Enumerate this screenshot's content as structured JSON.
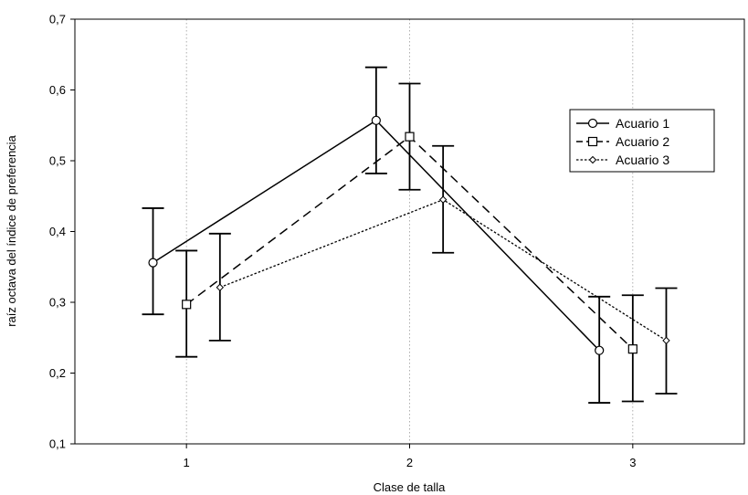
{
  "chart_data": {
    "type": "line",
    "xlabel": "Clase de talla",
    "ylabel": "raíz octava del índice de preferencia",
    "x_ticks": [
      "1",
      "2",
      "3"
    ],
    "y_ticks": [
      "0,1",
      "0,2",
      "0,3",
      "0,4",
      "0,5",
      "0,6",
      "0,7"
    ],
    "ylim": [
      0.1,
      0.7
    ],
    "xlim": [
      0.5,
      3.5
    ],
    "grid": "vertical dotted",
    "legend_position": "top-right",
    "error_bars": true,
    "series": [
      {
        "name": "Acuario 1",
        "marker": "circle",
        "line_style": "solid",
        "x": [
          0.85,
          1.85,
          2.85
        ],
        "y": [
          0.356,
          0.557,
          0.232
        ],
        "err_low": [
          0.283,
          0.482,
          0.158
        ],
        "err_high": [
          0.433,
          0.632,
          0.308
        ]
      },
      {
        "name": "Acuario 2",
        "marker": "square",
        "line_style": "dashed",
        "x": [
          1.0,
          2.0,
          3.0
        ],
        "y": [
          0.297,
          0.534,
          0.234
        ],
        "err_low": [
          0.223,
          0.459,
          0.16
        ],
        "err_high": [
          0.373,
          0.609,
          0.31
        ]
      },
      {
        "name": "Acuario 3",
        "marker": "diamond",
        "line_style": "dotted",
        "x": [
          1.15,
          2.15,
          3.15
        ],
        "y": [
          0.321,
          0.445,
          0.246
        ],
        "err_low": [
          0.246,
          0.37,
          0.171
        ],
        "err_high": [
          0.397,
          0.521,
          0.32
        ]
      }
    ]
  }
}
